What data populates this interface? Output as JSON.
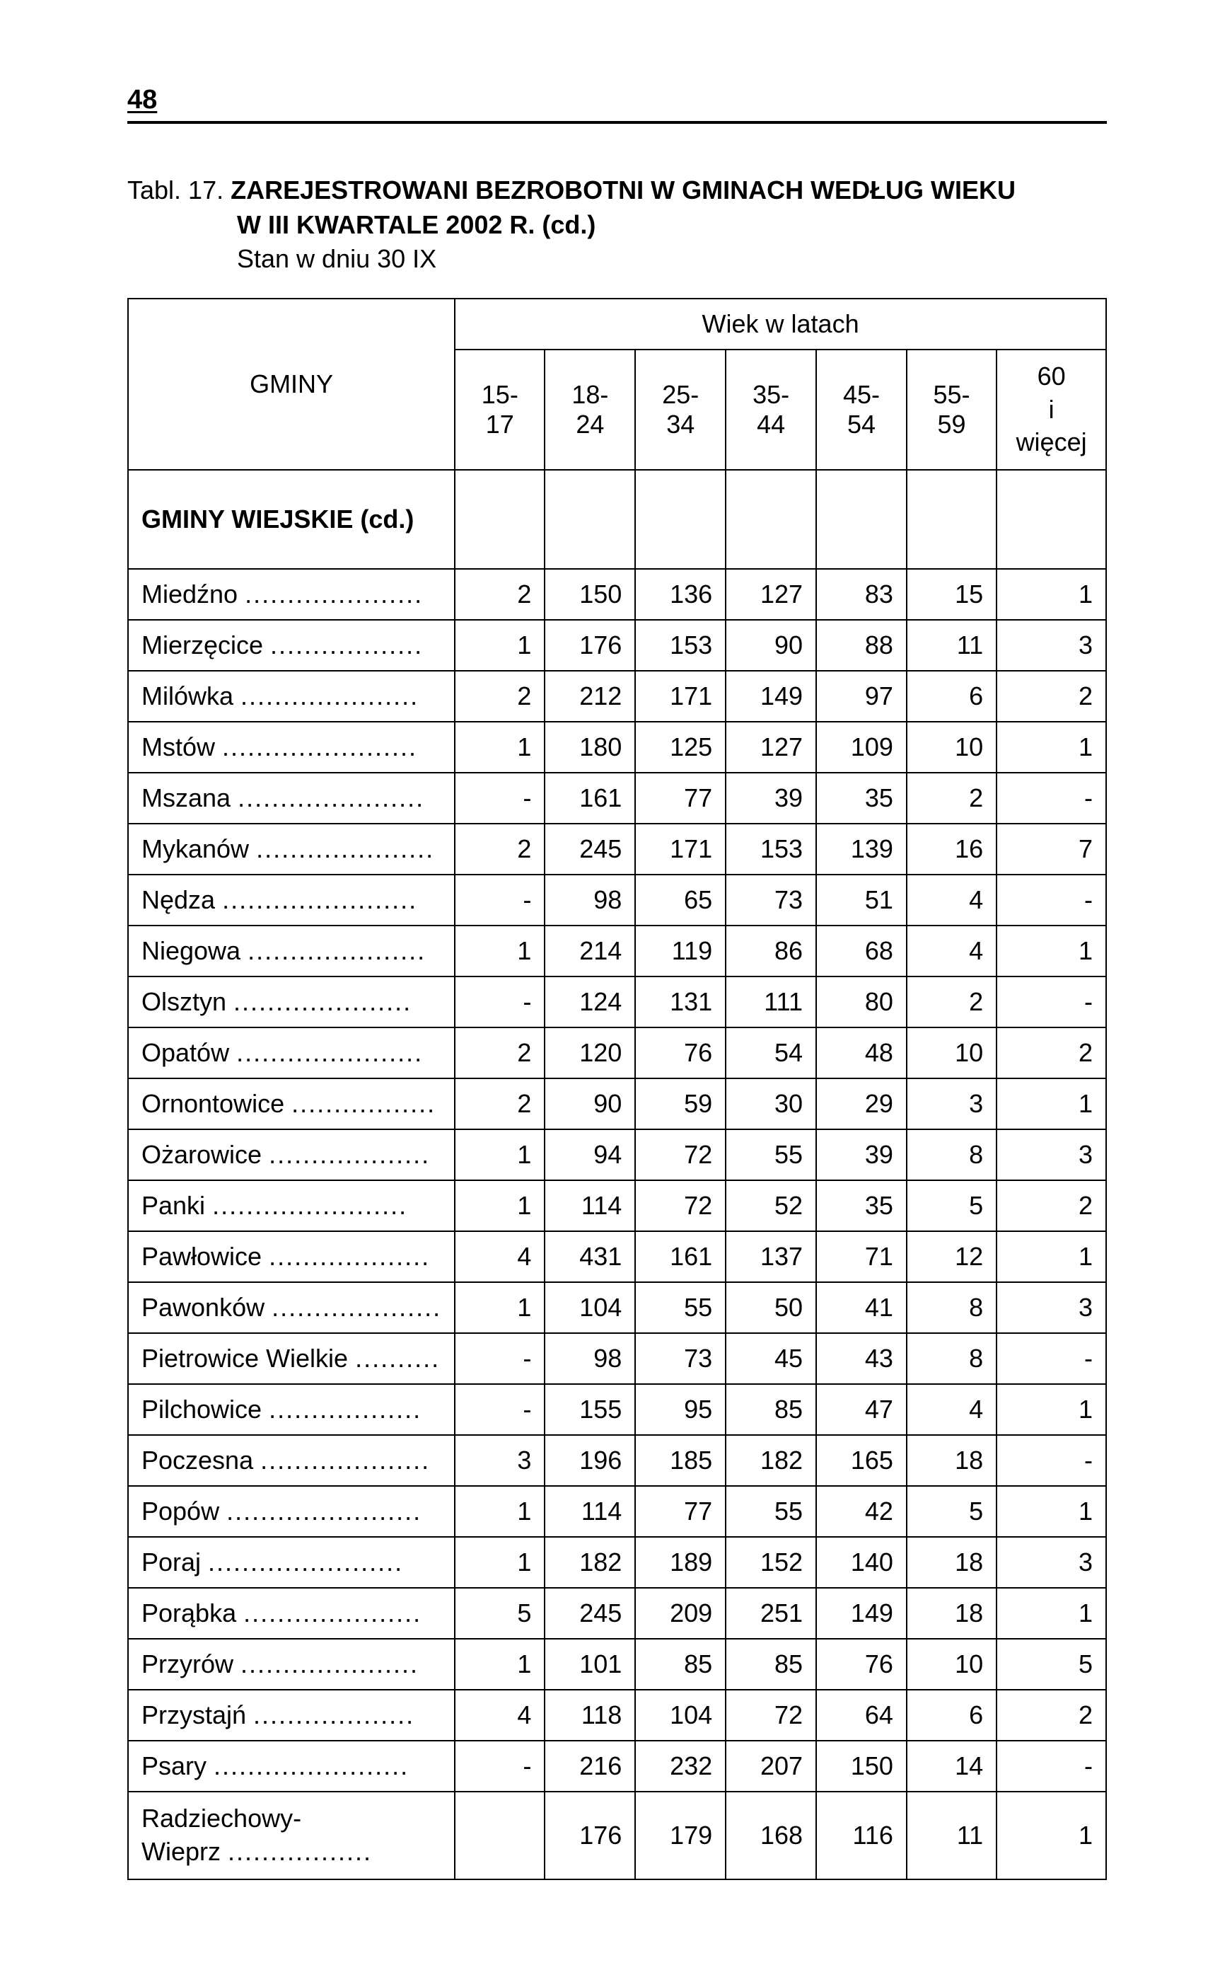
{
  "page_number": "48",
  "title": {
    "prefix": "Tabl. 17. ",
    "line1": "ZAREJESTROWANI BEZROBOTNI W GMINACH WEDŁUG WIEKU",
    "line2": "W III KWARTALE 2002 R. (cd.)",
    "line3": "Stan w dniu 30 IX"
  },
  "table": {
    "group_header": "Wiek w latach",
    "col_gminy": "GMINY",
    "age_columns": [
      "15-17",
      "18-24",
      "25-34",
      "35-44",
      "45-54",
      "55-59",
      "60\ni więcej"
    ],
    "section_label": "GMINY WIEJSKIE (cd.)",
    "rows": [
      {
        "label": "Miedźno",
        "v": [
          "2",
          "150",
          "136",
          "127",
          "83",
          "15",
          "1"
        ]
      },
      {
        "label": "Mierzęcice",
        "v": [
          "1",
          "176",
          "153",
          "90",
          "88",
          "11",
          "3"
        ]
      },
      {
        "label": "Milówka",
        "v": [
          "2",
          "212",
          "171",
          "149",
          "97",
          "6",
          "2"
        ]
      },
      {
        "label": "Mstów",
        "v": [
          "1",
          "180",
          "125",
          "127",
          "109",
          "10",
          "1"
        ]
      },
      {
        "label": "Mszana",
        "v": [
          "-",
          "161",
          "77",
          "39",
          "35",
          "2",
          "-"
        ]
      },
      {
        "label": "Mykanów",
        "v": [
          "2",
          "245",
          "171",
          "153",
          "139",
          "16",
          "7"
        ]
      },
      {
        "label": "Nędza",
        "v": [
          "-",
          "98",
          "65",
          "73",
          "51",
          "4",
          "-"
        ]
      },
      {
        "label": "Niegowa",
        "v": [
          "1",
          "214",
          "119",
          "86",
          "68",
          "4",
          "1"
        ]
      },
      {
        "label": "Olsztyn",
        "v": [
          "-",
          "124",
          "131",
          "111",
          "80",
          "2",
          "-"
        ]
      },
      {
        "label": "Opatów",
        "v": [
          "2",
          "120",
          "76",
          "54",
          "48",
          "10",
          "2"
        ]
      },
      {
        "label": "Ornontowice",
        "v": [
          "2",
          "90",
          "59",
          "30",
          "29",
          "3",
          "1"
        ]
      },
      {
        "label": "Ożarowice",
        "v": [
          "1",
          "94",
          "72",
          "55",
          "39",
          "8",
          "3"
        ]
      },
      {
        "label": "Panki",
        "v": [
          "1",
          "114",
          "72",
          "52",
          "35",
          "5",
          "2"
        ]
      },
      {
        "label": "Pawłowice",
        "v": [
          "4",
          "431",
          "161",
          "137",
          "71",
          "12",
          "1"
        ]
      },
      {
        "label": "Pawonków",
        "v": [
          "1",
          "104",
          "55",
          "50",
          "41",
          "8",
          "3"
        ]
      },
      {
        "label": "Pietrowice Wielkie",
        "v": [
          "-",
          "98",
          "73",
          "45",
          "43",
          "8",
          "-"
        ]
      },
      {
        "label": "Pilchowice",
        "v": [
          "-",
          "155",
          "95",
          "85",
          "47",
          "4",
          "1"
        ]
      },
      {
        "label": "Poczesna",
        "v": [
          "3",
          "196",
          "185",
          "182",
          "165",
          "18",
          "-"
        ]
      },
      {
        "label": "Popów",
        "v": [
          "1",
          "114",
          "77",
          "55",
          "42",
          "5",
          "1"
        ]
      },
      {
        "label": "Poraj",
        "v": [
          "1",
          "182",
          "189",
          "152",
          "140",
          "18",
          "3"
        ]
      },
      {
        "label": "Porąbka",
        "v": [
          "5",
          "245",
          "209",
          "251",
          "149",
          "18",
          "1"
        ]
      },
      {
        "label": "Przyrów",
        "v": [
          "1",
          "101",
          "85",
          "85",
          "76",
          "10",
          "5"
        ]
      },
      {
        "label": "Przystajń",
        "v": [
          "4",
          "118",
          "104",
          "72",
          "64",
          "6",
          "2"
        ]
      },
      {
        "label": "Psary",
        "v": [
          "-",
          "216",
          "232",
          "207",
          "150",
          "14",
          "-"
        ]
      },
      {
        "label": "Radziechowy-\nWieprz",
        "v": [
          "",
          "176",
          "179",
          "168",
          "116",
          "11",
          "1"
        ]
      }
    ]
  },
  "style": {
    "font_size_body": 36,
    "font_size_title": 36,
    "border_color": "#000000",
    "bg_color": "#ffffff",
    "text_color": "#000000"
  }
}
